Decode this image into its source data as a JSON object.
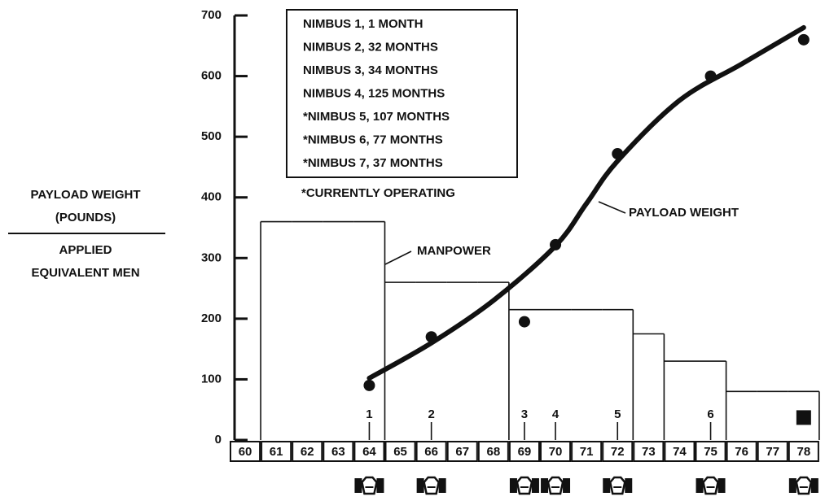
{
  "chart_data": {
    "type": "step",
    "y_label_top": [
      "PAYLOAD WEIGHT",
      "(POUNDS)"
    ],
    "y_label_bottom": [
      "APPLIED",
      "EQUIVALENT MEN"
    ],
    "categories": [
      60,
      61,
      62,
      63,
      64,
      65,
      66,
      67,
      68,
      69,
      70,
      71,
      72,
      73,
      74,
      75,
      76,
      77,
      78
    ],
    "ylim": [
      0,
      700
    ],
    "yticks": [
      0,
      100,
      200,
      300,
      400,
      500,
      600,
      700
    ],
    "series": [
      {
        "name": "MANPOWER",
        "values": [
          null,
          360,
          360,
          360,
          360,
          260,
          260,
          260,
          260,
          215,
          215,
          215,
          215,
          175,
          130,
          130,
          80,
          80,
          80
        ]
      },
      {
        "name": "PAYLOAD WEIGHT",
        "x": [
          64,
          66,
          69,
          70,
          72,
          75,
          78
        ],
        "values": [
          90,
          170,
          195,
          322,
          472,
          600,
          660
        ],
        "curve_x": [
          64,
          66,
          68,
          70,
          71,
          72,
          74,
          76,
          78
        ],
        "curve_values": [
          102,
          160,
          230,
          320,
          390,
          460,
          560,
          620,
          680
        ]
      }
    ],
    "square_point": {
      "x": 78,
      "value": 37
    },
    "launch_years": [
      64,
      66,
      69,
      70,
      72,
      75
    ],
    "launch_numbers": [
      1,
      2,
      3,
      4,
      5,
      6
    ],
    "satellite_years": [
      64,
      66,
      69,
      70,
      72,
      75,
      78
    ],
    "legend_lines": [
      "NIMBUS 1, 1 MONTH",
      "NIMBUS 2, 32 MONTHS",
      "NIMBUS 3, 34 MONTHS",
      "NIMBUS 4, 125 MONTHS",
      "*NIMBUS 5, 107 MONTHS",
      "*NIMBUS 6, 77 MONTHS",
      "*NIMBUS 7, 37 MONTHS"
    ],
    "note": "*CURRENTLY OPERATING"
  }
}
